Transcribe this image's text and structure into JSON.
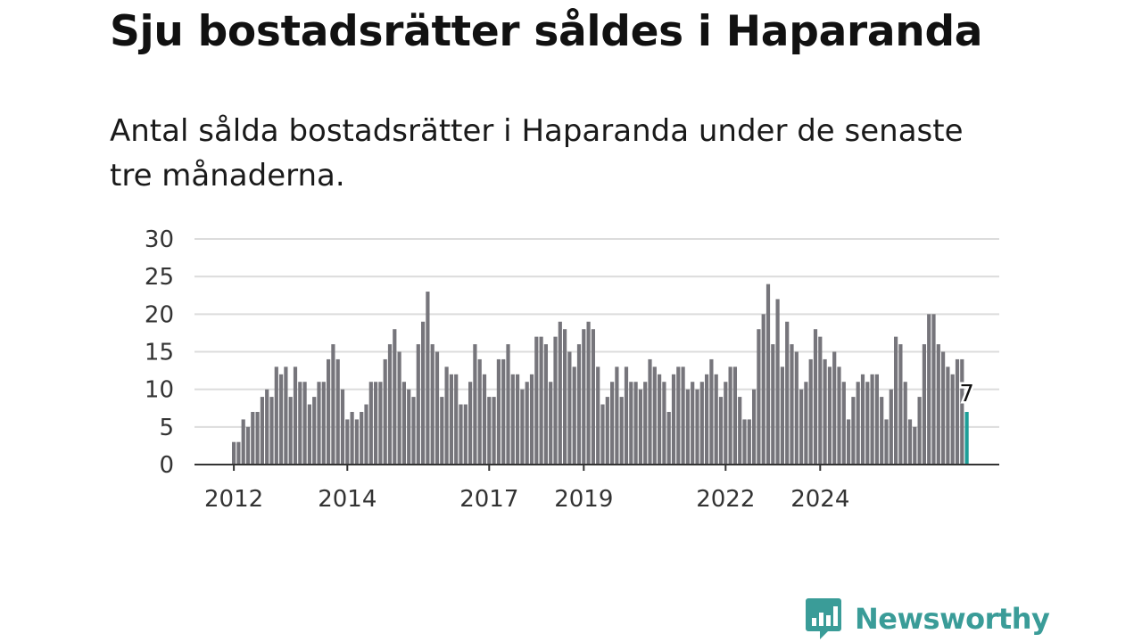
{
  "title": "Sju bostadsrätter såldes i Haparanda",
  "subtitle": "Antal sålda bostadsrätter i Haparanda under de senaste tre månaderna.",
  "brand": {
    "name": "Newsworthy",
    "color": "#3a9c98"
  },
  "colors": {
    "bar": "#76757b",
    "highlight": "#1d9e98",
    "grid": "#dcdcdc",
    "axis": "#333333"
  },
  "chart_data": {
    "type": "bar",
    "x_start": "2012-01",
    "frequency": "monthly",
    "values": [
      3,
      3,
      6,
      5,
      7,
      7,
      9,
      10,
      9,
      13,
      12,
      13,
      9,
      13,
      11,
      11,
      8,
      9,
      11,
      11,
      14,
      16,
      14,
      10,
      6,
      7,
      6,
      7,
      8,
      11,
      11,
      11,
      14,
      16,
      18,
      15,
      11,
      10,
      9,
      16,
      19,
      23,
      16,
      15,
      9,
      13,
      12,
      12,
      8,
      8,
      11,
      16,
      14,
      12,
      9,
      9,
      14,
      14,
      16,
      12,
      12,
      10,
      11,
      12,
      17,
      17,
      16,
      11,
      17,
      19,
      18,
      15,
      13,
      16,
      18,
      19,
      18,
      13,
      8,
      9,
      11,
      13,
      9,
      13,
      11,
      11,
      10,
      11,
      14,
      13,
      12,
      11,
      7,
      12,
      13,
      13,
      10,
      11,
      10,
      11,
      12,
      14,
      12,
      9,
      11,
      13,
      13,
      9,
      6,
      6,
      10,
      18,
      20,
      24,
      16,
      22,
      13,
      19,
      16,
      15,
      10,
      11,
      14,
      18,
      17,
      14,
      13,
      15,
      13,
      11,
      6,
      9,
      11,
      12,
      11,
      12,
      12,
      9,
      6,
      10,
      17,
      16,
      11,
      6,
      5,
      9,
      16,
      20,
      20,
      16,
      15,
      13,
      12,
      14,
      14,
      7
    ],
    "highlight_last": true,
    "highlight_label": "7",
    "y_ticks": [
      0,
      5,
      10,
      15,
      20,
      25,
      30
    ],
    "x_ticks": [
      {
        "label": "2012",
        "index": 0
      },
      {
        "label": "2014",
        "index": 24
      },
      {
        "label": "2017",
        "index": 54
      },
      {
        "label": "2019",
        "index": 74
      },
      {
        "label": "2022",
        "index": 104
      },
      {
        "label": "2024",
        "index": 124
      }
    ],
    "ylim": [
      0,
      30
    ],
    "grid": true,
    "legend": "none"
  }
}
